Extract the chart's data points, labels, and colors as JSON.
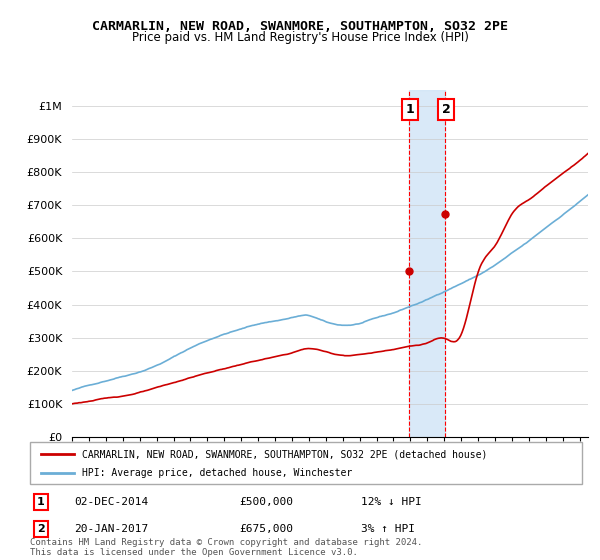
{
  "title": "CARMARLIN, NEW ROAD, SWANMORE, SOUTHAMPTON, SO32 2PE",
  "subtitle": "Price paid vs. HM Land Registry's House Price Index (HPI)",
  "legend_line1": "CARMARLIN, NEW ROAD, SWANMORE, SOUTHAMPTON, SO32 2PE (detached house)",
  "legend_line2": "HPI: Average price, detached house, Winchester",
  "annotation1_label": "1",
  "annotation1_date": "02-DEC-2014",
  "annotation1_price": "£500,000",
  "annotation1_hpi": "12% ↓ HPI",
  "annotation2_label": "2",
  "annotation2_date": "20-JAN-2017",
  "annotation2_price": "£675,000",
  "annotation2_hpi": "3% ↑ HPI",
  "footer": "Contains HM Land Registry data © Crown copyright and database right 2024.\nThis data is licensed under the Open Government Licence v3.0.",
  "sale1_year": 2014.92,
  "sale1_value": 500000,
  "sale2_year": 2017.05,
  "sale2_value": 675000,
  "hpi_color": "#6baed6",
  "price_color": "#cc0000",
  "highlight_color": "#d0e4f7",
  "highlight_alpha": 0.5,
  "sale_dot_color": "#cc0000",
  "ylim_min": 0,
  "ylim_max": 1050000,
  "xlim_min": 1995,
  "xlim_max": 2025.5,
  "background_color": "#ffffff"
}
